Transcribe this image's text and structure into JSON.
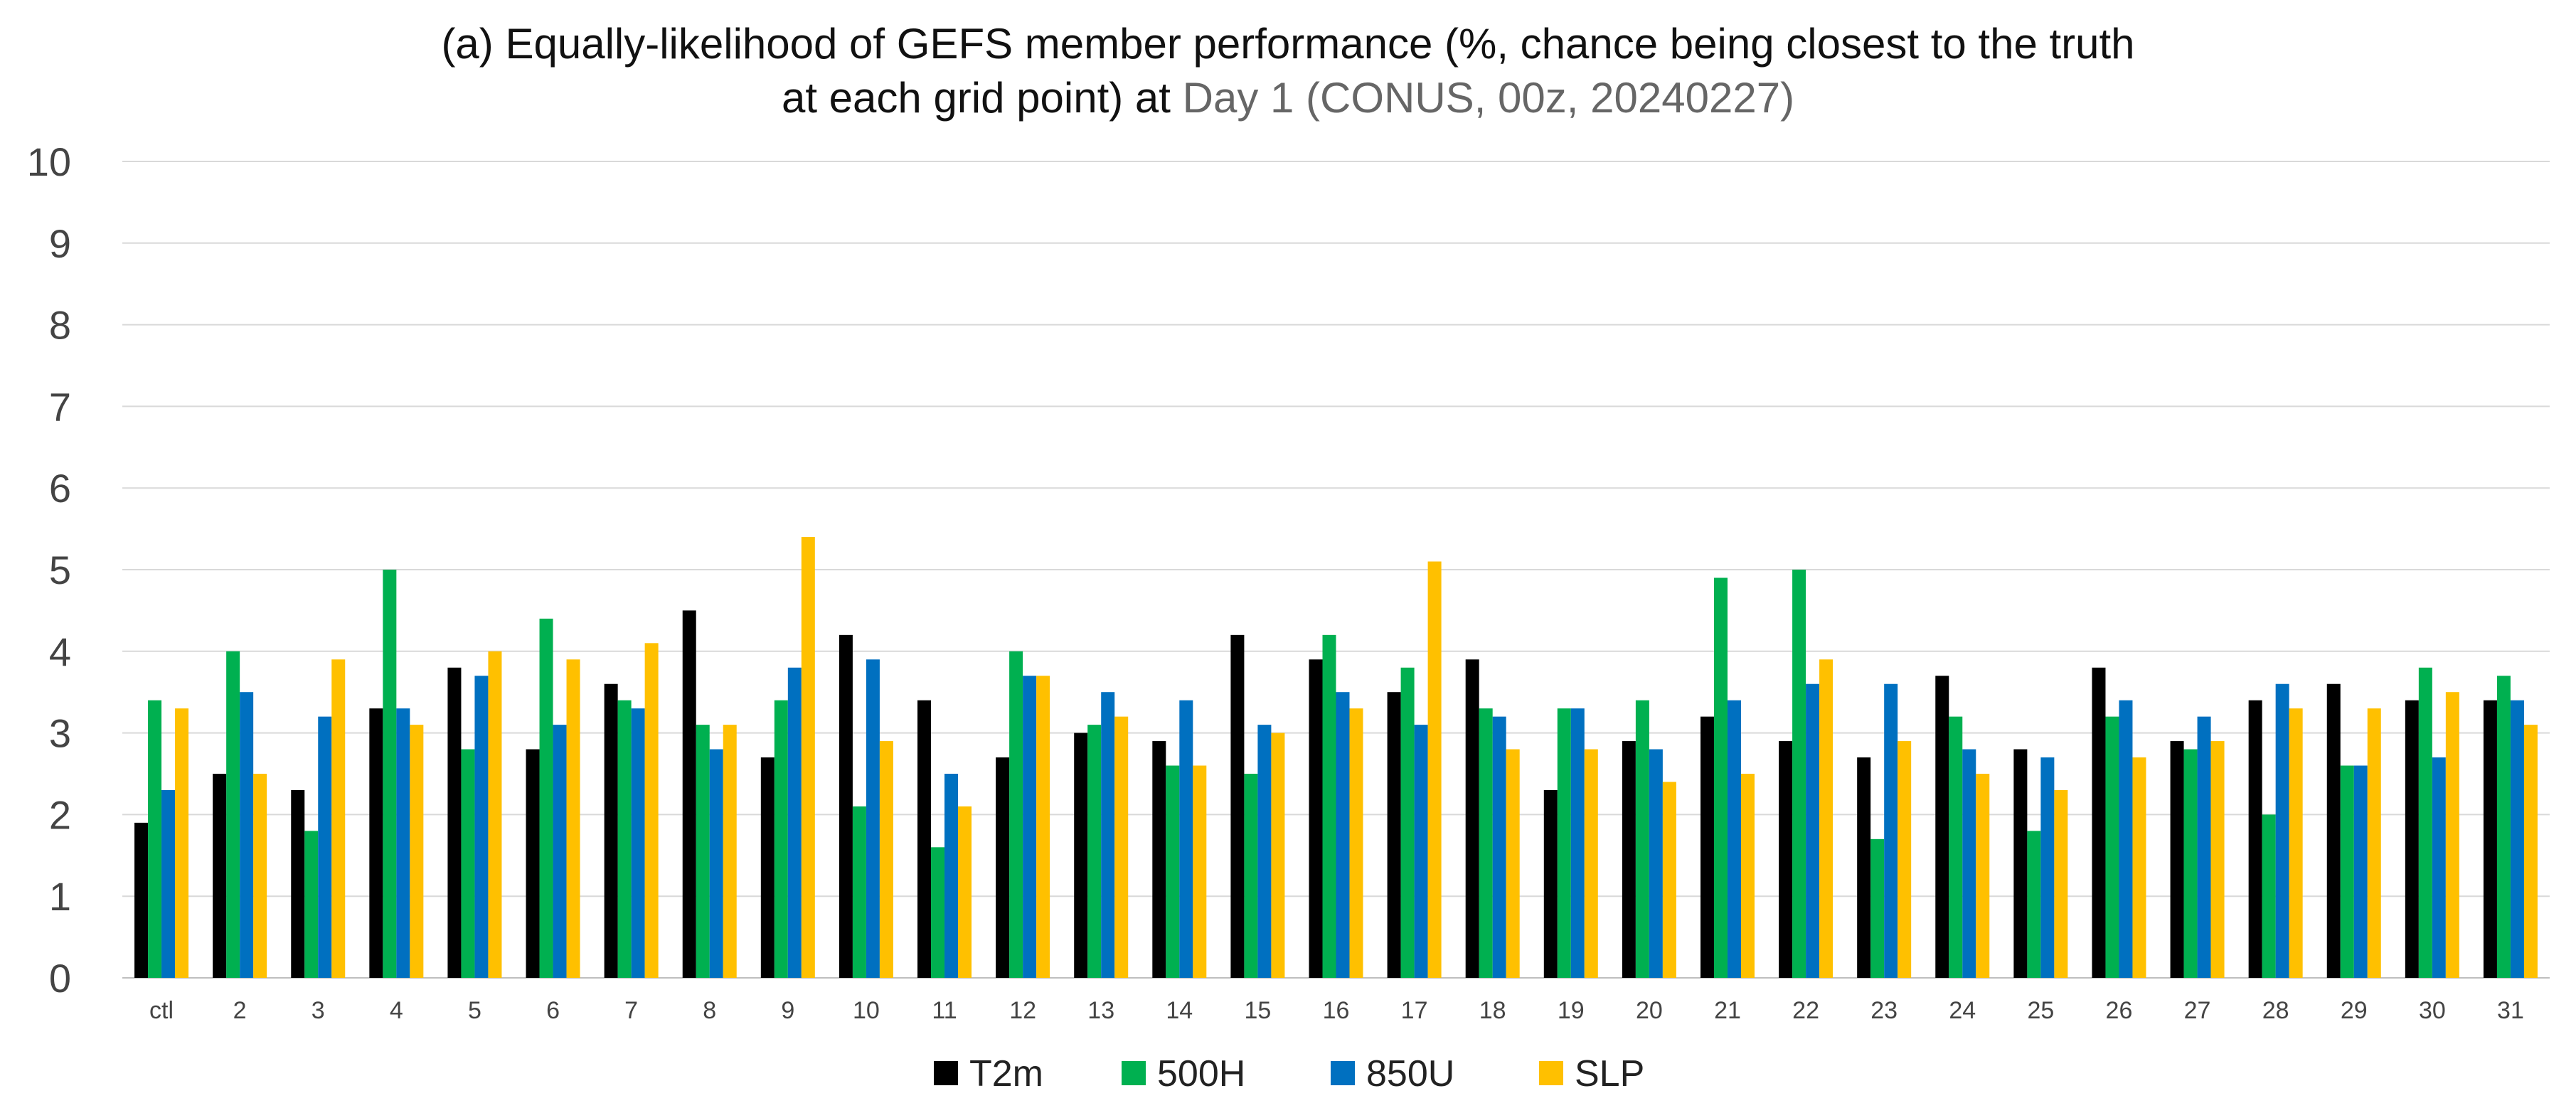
{
  "chart_data": {
    "type": "bar",
    "title_line1": "(a) Equally-likelihood of GEFS member performance (%, chance being closest to the truth",
    "title_line2_prefix": "at each grid point) at ",
    "title_line2_highlight": "Day 1 (CONUS, 00z, 20240227)",
    "xlabel": "",
    "ylabel": "",
    "ylim": [
      0,
      10
    ],
    "yticks": [
      0,
      1,
      2,
      3,
      4,
      5,
      6,
      7,
      8,
      9,
      10
    ],
    "grid": true,
    "legend_position": "bottom-center",
    "categories": [
      "ctl",
      "2",
      "3",
      "4",
      "5",
      "6",
      "7",
      "8",
      "9",
      "10",
      "11",
      "12",
      "13",
      "14",
      "15",
      "16",
      "17",
      "18",
      "19",
      "20",
      "21",
      "22",
      "23",
      "24",
      "25",
      "26",
      "27",
      "28",
      "29",
      "30",
      "31"
    ],
    "series": [
      {
        "name": "T2m",
        "color": "#000000",
        "values": [
          1.9,
          2.5,
          2.3,
          3.3,
          3.8,
          2.8,
          3.6,
          4.5,
          2.7,
          4.2,
          3.4,
          2.7,
          3.0,
          2.9,
          4.2,
          3.9,
          3.5,
          3.9,
          2.3,
          2.9,
          3.2,
          2.9,
          2.7,
          3.7,
          2.8,
          3.8,
          2.9,
          3.4,
          3.6,
          3.4,
          3.4
        ]
      },
      {
        "name": "500H",
        "color": "#00b050",
        "values": [
          3.4,
          4.0,
          1.8,
          5.0,
          2.8,
          4.4,
          3.4,
          3.1,
          3.4,
          2.1,
          1.6,
          4.0,
          3.1,
          2.6,
          2.5,
          4.2,
          3.8,
          3.3,
          3.3,
          3.4,
          4.9,
          5.0,
          1.7,
          3.2,
          1.8,
          3.2,
          2.8,
          2.0,
          2.6,
          3.8,
          3.7
        ]
      },
      {
        "name": "850U",
        "color": "#0070c0",
        "values": [
          2.3,
          3.5,
          3.2,
          3.3,
          3.7,
          3.1,
          3.3,
          2.8,
          3.8,
          3.9,
          2.5,
          3.7,
          3.5,
          3.4,
          3.1,
          3.5,
          3.1,
          3.2,
          3.3,
          2.8,
          3.4,
          3.6,
          3.6,
          2.8,
          2.7,
          3.4,
          3.2,
          3.6,
          2.6,
          2.7,
          3.4
        ]
      },
      {
        "name": "SLP",
        "color": "#ffc000",
        "values": [
          3.3,
          2.5,
          3.9,
          3.1,
          4.0,
          3.9,
          4.1,
          3.1,
          5.4,
          2.9,
          2.1,
          3.7,
          3.2,
          2.6,
          3.0,
          3.3,
          5.1,
          2.8,
          2.8,
          2.4,
          2.5,
          3.9,
          2.9,
          2.5,
          2.3,
          2.7,
          2.9,
          3.3,
          3.3,
          3.5,
          3.1
        ]
      }
    ]
  }
}
